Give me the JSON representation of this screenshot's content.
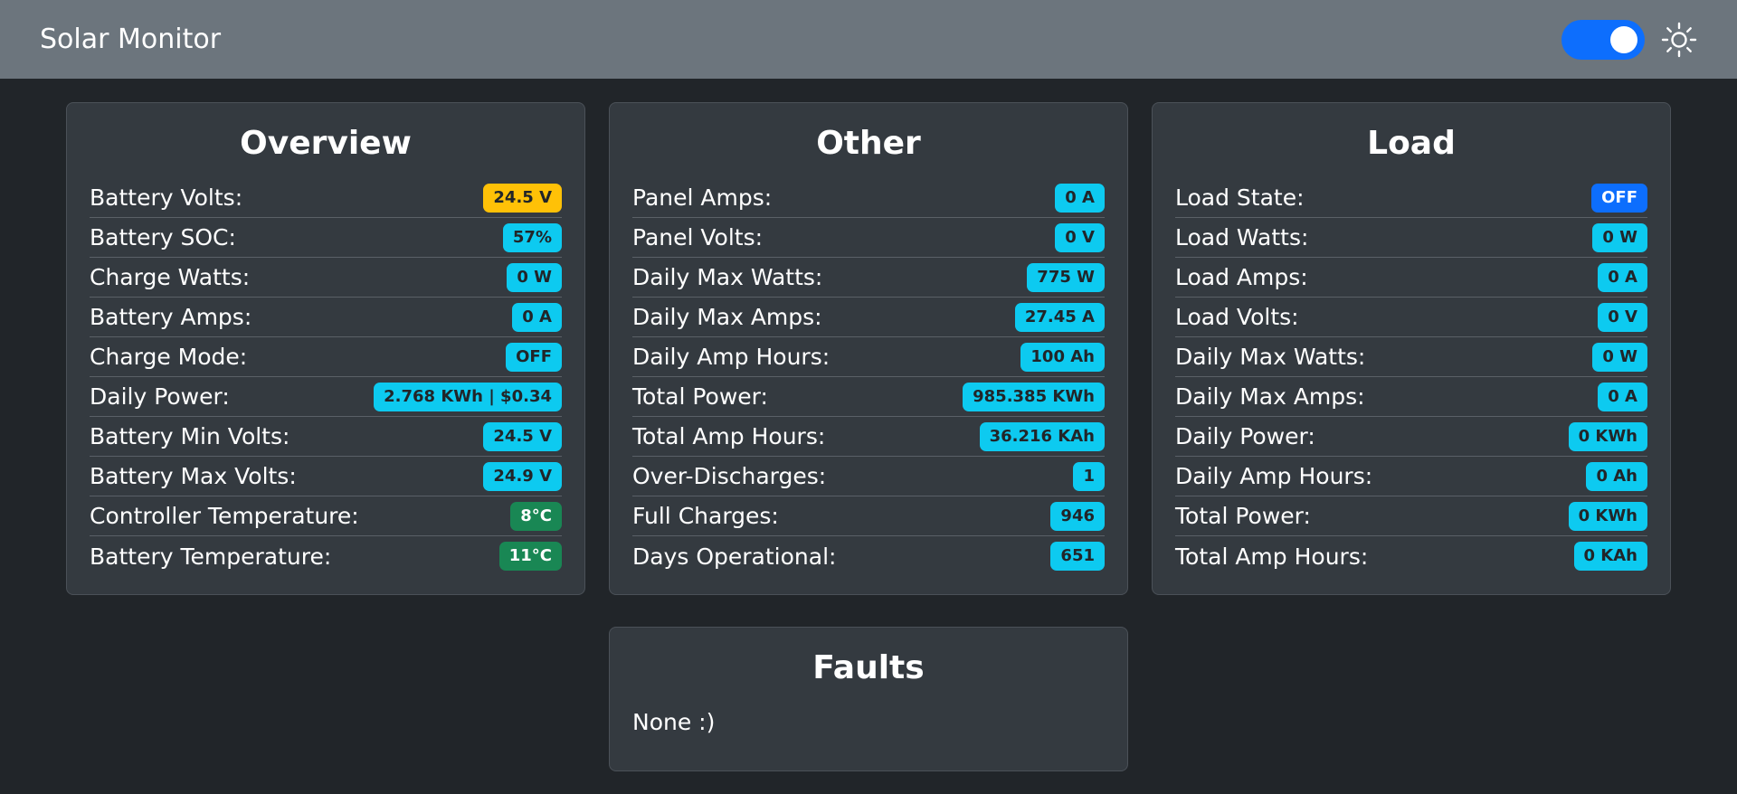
{
  "header": {
    "title": "Solar Monitor",
    "toggle_state": "on",
    "theme_icon": "sun-icon"
  },
  "overview": {
    "title": "Overview",
    "rows": [
      {
        "label": "Battery Volts:",
        "value": "24.5 V",
        "color": "warning"
      },
      {
        "label": "Battery SOC:",
        "value": "57%",
        "color": "info"
      },
      {
        "label": "Charge Watts:",
        "value": "0 W",
        "color": "info"
      },
      {
        "label": "Battery Amps:",
        "value": "0 A",
        "color": "info"
      },
      {
        "label": "Charge Mode:",
        "value": "OFF",
        "color": "info"
      },
      {
        "label": "Daily Power:",
        "value": "2.768 KWh | $0.34",
        "color": "info"
      },
      {
        "label": "Battery Min Volts:",
        "value": "24.5 V",
        "color": "info"
      },
      {
        "label": "Battery Max Volts:",
        "value": "24.9 V",
        "color": "info"
      },
      {
        "label": "Controller Temperature:",
        "value": "8°C",
        "color": "success"
      },
      {
        "label": "Battery Temperature:",
        "value": "11°C",
        "color": "success"
      }
    ]
  },
  "other": {
    "title": "Other",
    "rows": [
      {
        "label": "Panel Amps:",
        "value": "0 A",
        "color": "info"
      },
      {
        "label": "Panel Volts:",
        "value": "0 V",
        "color": "info"
      },
      {
        "label": "Daily Max Watts:",
        "value": "775 W",
        "color": "info"
      },
      {
        "label": "Daily Max Amps:",
        "value": "27.45 A",
        "color": "info"
      },
      {
        "label": "Daily Amp Hours:",
        "value": "100 Ah",
        "color": "info"
      },
      {
        "label": "Total Power:",
        "value": "985.385 KWh",
        "color": "info"
      },
      {
        "label": "Total Amp Hours:",
        "value": "36.216 KAh",
        "color": "info"
      },
      {
        "label": "Over-Discharges:",
        "value": "1",
        "color": "info"
      },
      {
        "label": "Full Charges:",
        "value": "946",
        "color": "info"
      },
      {
        "label": "Days Operational:",
        "value": "651",
        "color": "info"
      }
    ]
  },
  "load": {
    "title": "Load",
    "rows": [
      {
        "label": "Load State:",
        "value": "OFF",
        "color": "primary"
      },
      {
        "label": "Load Watts:",
        "value": "0 W",
        "color": "info"
      },
      {
        "label": "Load Amps:",
        "value": "0 A",
        "color": "info"
      },
      {
        "label": "Load Volts:",
        "value": "0 V",
        "color": "info"
      },
      {
        "label": "Daily Max Watts:",
        "value": "0 W",
        "color": "info"
      },
      {
        "label": "Daily Max Amps:",
        "value": "0 A",
        "color": "info"
      },
      {
        "label": "Daily Power:",
        "value": "0 KWh",
        "color": "info"
      },
      {
        "label": "Daily Amp Hours:",
        "value": "0 Ah",
        "color": "info"
      },
      {
        "label": "Total Power:",
        "value": "0 KWh",
        "color": "info"
      },
      {
        "label": "Total Amp Hours:",
        "value": "0 KAh",
        "color": "info"
      }
    ]
  },
  "faults": {
    "title": "Faults",
    "text": "None :)"
  },
  "colors": {
    "info": "#0dcaf0",
    "warning": "#ffc107",
    "success": "#198754",
    "primary": "#0d6efd",
    "navbar": "#6c757d",
    "background": "#212529",
    "card": "#343a40"
  }
}
